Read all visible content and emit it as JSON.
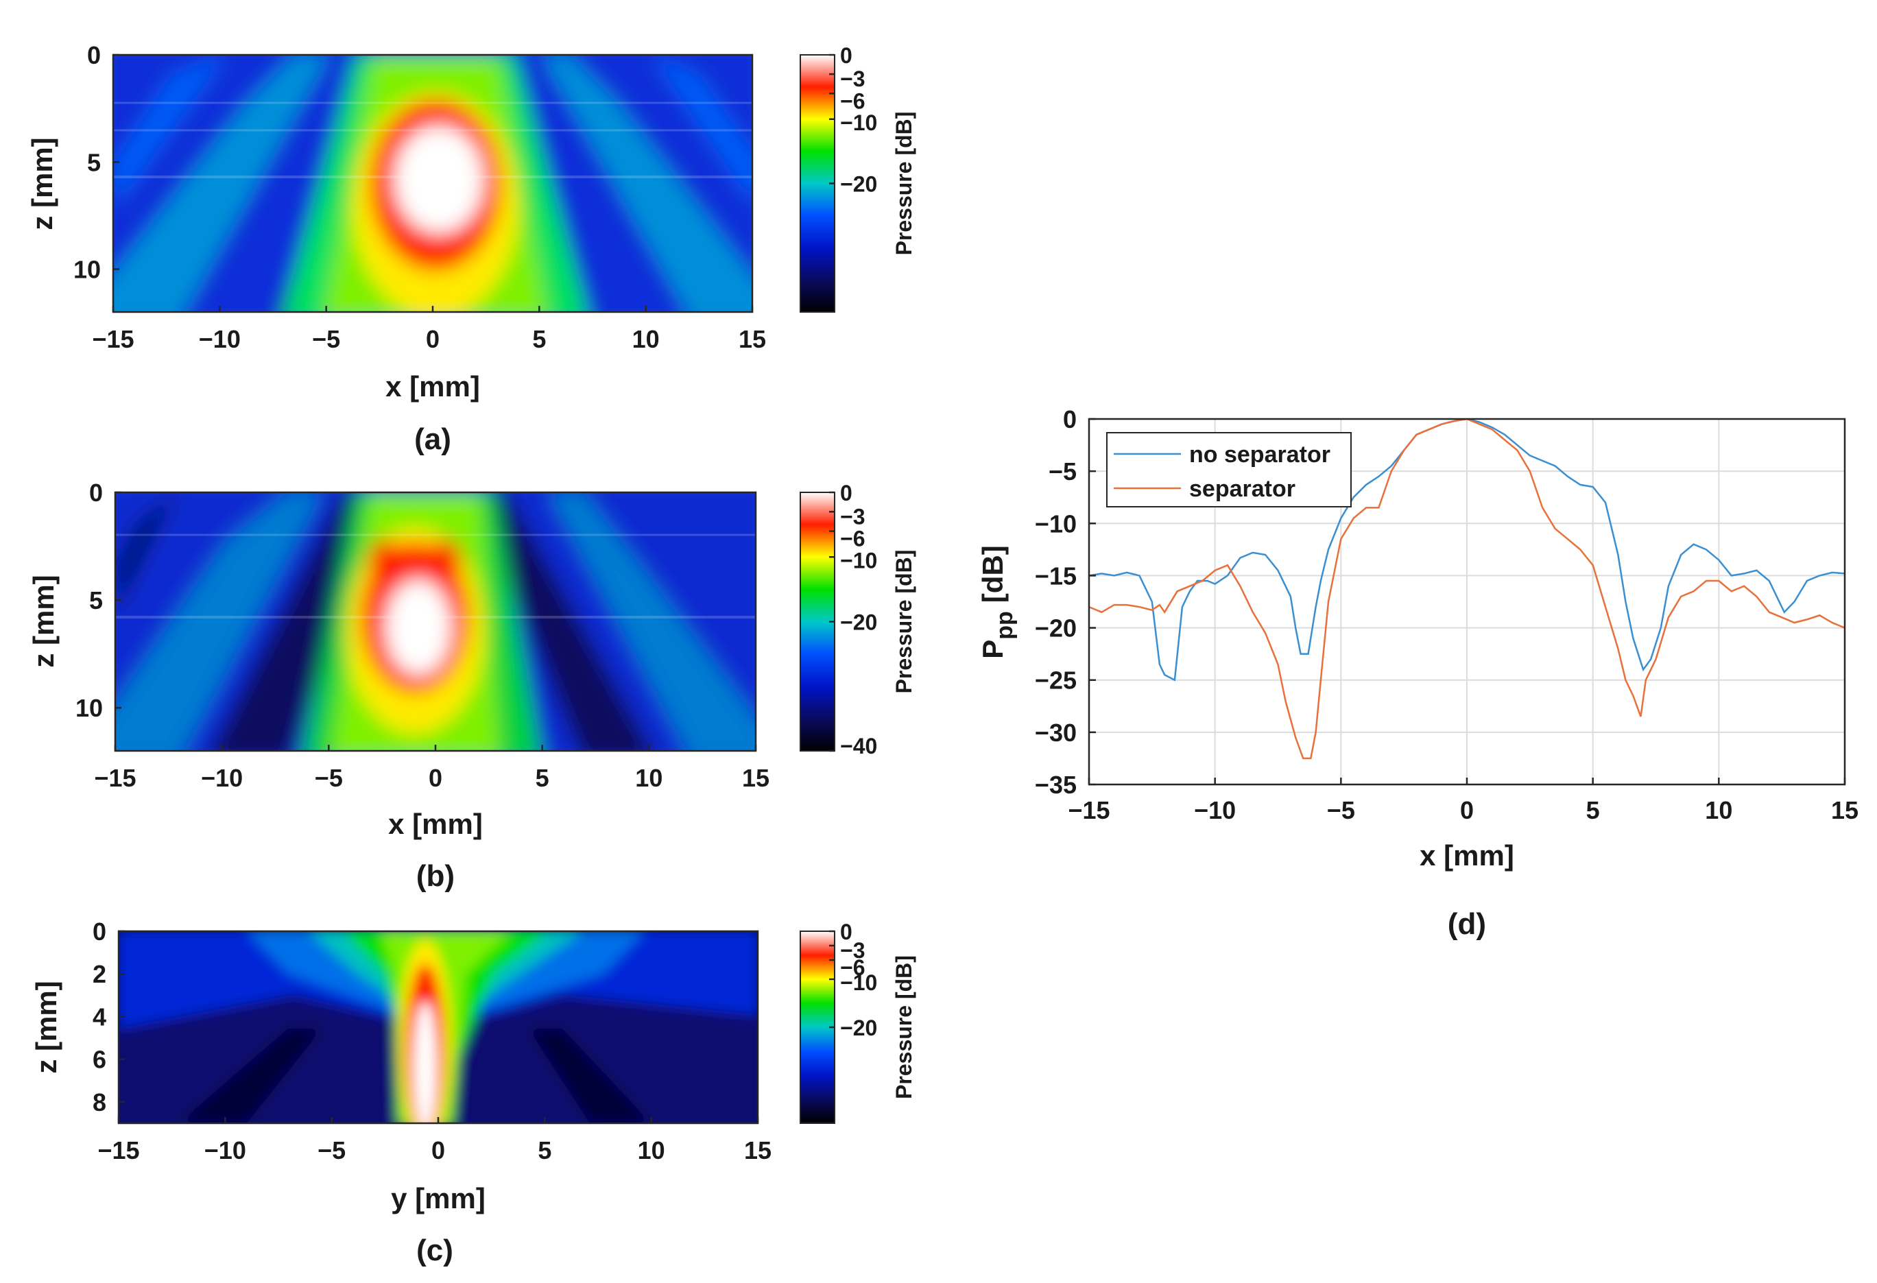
{
  "colors": {
    "colormap": [
      "#000000",
      "#0a0a60",
      "#0014c8",
      "#0050ff",
      "#00c8c8",
      "#00e000",
      "#ffff00",
      "#ff1e00",
      "#ffffff"
    ],
    "series_no_separator": "#3a8fd1",
    "series_separator": "#e8703a"
  },
  "chart_data": [
    {
      "id": "a",
      "type": "heatmap",
      "panel_label": "(a)",
      "xlabel": "x [mm]",
      "ylabel": "z [mm]",
      "xlim": [
        -15,
        15
      ],
      "ylim": [
        0,
        12
      ],
      "xticks": [
        "−15",
        "−10",
        "−5",
        "0",
        "5",
        "10",
        "15"
      ],
      "yticks": [
        "0",
        "5",
        "10"
      ],
      "colorbar": {
        "label": "Pressure [dB]",
        "range_db": [
          -40,
          0
        ],
        "ticks": [
          "0",
          "−3",
          "−6",
          "−10",
          "−20"
        ]
      },
      "focus": {
        "x_mm": 0,
        "z_mm": 6,
        "peak_db": 0
      },
      "side_lobes": "diagonal lobes at approx −20 to −10 dB"
    },
    {
      "id": "b",
      "type": "heatmap",
      "panel_label": "(b)",
      "xlabel": "x [mm]",
      "ylabel": "z [mm]",
      "xlim": [
        -15,
        15
      ],
      "ylim": [
        0,
        12
      ],
      "xticks": [
        "−15",
        "−10",
        "−5",
        "0",
        "5",
        "10",
        "15"
      ],
      "yticks": [
        "0",
        "5",
        "10"
      ],
      "colorbar": {
        "label": "Pressure [dB]",
        "range_db": [
          -40,
          0
        ],
        "ticks": [
          "0",
          "−3",
          "−6",
          "−10",
          "−20",
          "−40"
        ]
      },
      "focus": {
        "x_mm": -1,
        "z_mm": 6,
        "peak_db": 0
      },
      "side_lobes": "diagonal lobes at approx −25 to −15 dB"
    },
    {
      "id": "c",
      "type": "heatmap",
      "panel_label": "(c)",
      "xlabel": "y [mm]",
      "ylabel": "z [mm]",
      "xlim": [
        -15,
        15
      ],
      "ylim": [
        0,
        9
      ],
      "xticks": [
        "−15",
        "−10",
        "−5",
        "0",
        "5",
        "10",
        "15"
      ],
      "yticks": [
        "0",
        "2",
        "4",
        "6",
        "8"
      ],
      "colorbar": {
        "label": "Pressure [dB]",
        "range_db": [
          -40,
          0
        ],
        "ticks": [
          "0",
          "−3",
          "−6",
          "−10",
          "−20"
        ]
      },
      "focus": {
        "x_mm": -0.7,
        "z_mm": 6,
        "peak_db": 0
      },
      "side_lobes": "weak lobes below −20 dB"
    },
    {
      "id": "d",
      "type": "line",
      "panel_label": "(d)",
      "xlabel": "x [mm]",
      "ylabel_main": "P",
      "ylabel_sub": "pp",
      "ylabel_unit": "[dB]",
      "xlim": [
        -15,
        15
      ],
      "ylim": [
        -35,
        0
      ],
      "grid": true,
      "legend_position": "top-left",
      "xticks": [
        "−15",
        "−10",
        "−5",
        "0",
        "5",
        "10",
        "15"
      ],
      "yticks": [
        "0",
        "−5",
        "−10",
        "−15",
        "−20",
        "−25",
        "−30",
        "−35"
      ],
      "series": [
        {
          "name": "no separator",
          "x": [
            -15,
            -14.5,
            -14,
            -13.5,
            -13,
            -12.5,
            -12.2,
            -12,
            -11.6,
            -11.3,
            -11,
            -10.7,
            -10.3,
            -10,
            -9.5,
            -9,
            -8.5,
            -8,
            -7.5,
            -7,
            -6.8,
            -6.6,
            -6.3,
            -6,
            -5.8,
            -5.5,
            -5,
            -4.5,
            -4,
            -3.5,
            -3,
            -2.5,
            -2,
            -1.5,
            -1,
            -0.5,
            0,
            0.5,
            1,
            1.5,
            2,
            2.5,
            3,
            3.5,
            4,
            4.5,
            5,
            5.5,
            6,
            6.3,
            6.6,
            7,
            7.3,
            7.7,
            8,
            8.5,
            9,
            9.5,
            10,
            10.5,
            11,
            11.5,
            12,
            12.3,
            12.6,
            13,
            13.5,
            14,
            14.5,
            15
          ],
          "y": [
            -15,
            -14.8,
            -15,
            -14.7,
            -15,
            -17.5,
            -23.5,
            -24.5,
            -25,
            -18,
            -16.5,
            -15.5,
            -15.5,
            -15.8,
            -15,
            -13.3,
            -12.8,
            -13,
            -14.5,
            -17,
            -20,
            -22.5,
            -22.5,
            -18,
            -15.5,
            -12.5,
            -9.5,
            -7.5,
            -6.3,
            -5.5,
            -4.5,
            -3,
            -1.5,
            -1,
            -0.5,
            -0.2,
            0,
            -0.3,
            -0.8,
            -1.5,
            -2.5,
            -3.5,
            -4,
            -4.5,
            -5.5,
            -6.3,
            -6.5,
            -8,
            -13,
            -17.5,
            -21,
            -24,
            -23,
            -20,
            -16,
            -13,
            -12,
            -12.5,
            -13.5,
            -15,
            -14.8,
            -14.5,
            -15.5,
            -17,
            -18.5,
            -17.5,
            -15.5,
            -15,
            -14.7,
            -14.8
          ]
        },
        {
          "name": "separator",
          "x": [
            -15,
            -14.5,
            -14,
            -13.5,
            -13,
            -12.5,
            -12.2,
            -12,
            -11.5,
            -11,
            -10.5,
            -10,
            -9.5,
            -9,
            -8.5,
            -8,
            -7.5,
            -7.2,
            -6.8,
            -6.5,
            -6.2,
            -6,
            -5.8,
            -5.5,
            -5,
            -4.5,
            -4,
            -3.5,
            -3,
            -2.5,
            -2,
            -1.5,
            -1,
            -0.5,
            0,
            0.5,
            1,
            1.5,
            2,
            2.5,
            3,
            3.5,
            4,
            4.5,
            5,
            5.5,
            6,
            6.3,
            6.6,
            6.9,
            7.1,
            7.5,
            8,
            8.5,
            9,
            9.5,
            10,
            10.5,
            11,
            11.5,
            12,
            12.5,
            13,
            13.5,
            14,
            14.5,
            15
          ],
          "y": [
            -18,
            -18.5,
            -17.8,
            -17.8,
            -18,
            -18.3,
            -17.8,
            -18.5,
            -16.5,
            -16,
            -15.5,
            -14.5,
            -14,
            -16,
            -18.5,
            -20.5,
            -23.5,
            -27,
            -30.5,
            -32.5,
            -32.5,
            -30,
            -25,
            -17.5,
            -11.5,
            -9.5,
            -8.5,
            -8.5,
            -5,
            -3,
            -1.5,
            -1,
            -0.5,
            -0.2,
            0,
            -0.5,
            -1,
            -2,
            -3,
            -5,
            -8.5,
            -10.5,
            -11.5,
            -12.5,
            -14,
            -18,
            -22,
            -25,
            -26.5,
            -28.5,
            -25,
            -23,
            -19,
            -17,
            -16.5,
            -15.5,
            -15.5,
            -16.5,
            -16,
            -17,
            -18.5,
            -19,
            -19.5,
            -19.2,
            -18.8,
            -19.5,
            -20
          ]
        }
      ]
    }
  ]
}
